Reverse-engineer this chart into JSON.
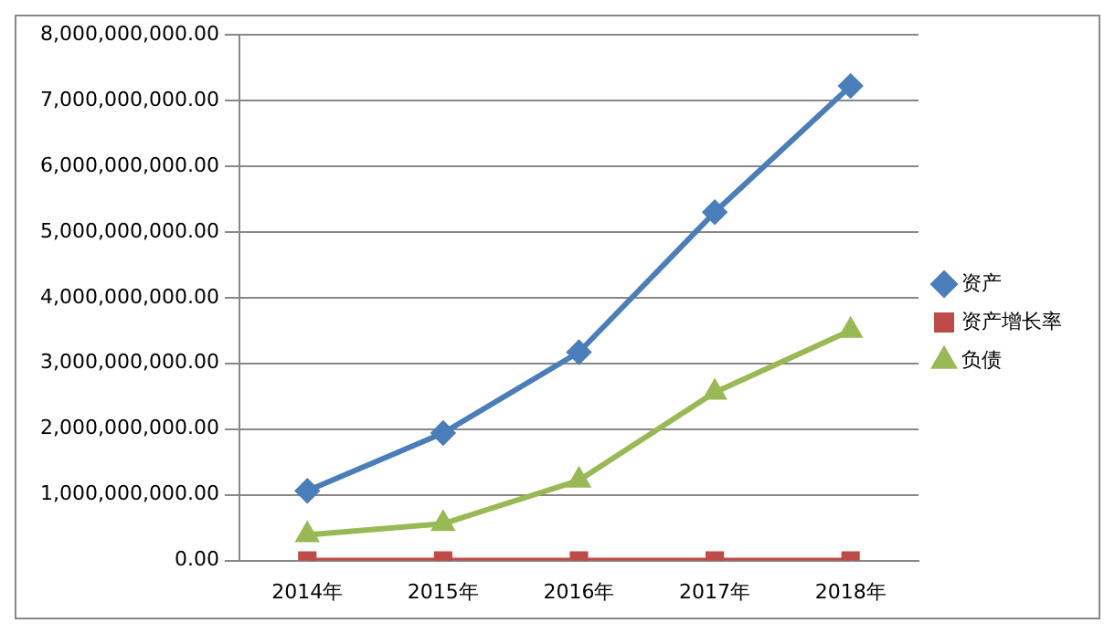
{
  "chart_data": {
    "type": "line",
    "categories": [
      "2014年",
      "2015年",
      "2016年",
      "2017年",
      "2018年"
    ],
    "series": [
      {
        "name": "资产",
        "color": "#4a7ebb",
        "marker": "diamond",
        "values": [
          1060000000,
          1940000000,
          3170000000,
          5300000000,
          7220000000
        ]
      },
      {
        "name": "资产增长率",
        "color": "#be4b48",
        "marker": "square",
        "values": [
          0,
          0,
          0,
          0,
          0
        ]
      },
      {
        "name": "负债",
        "color": "#98b954",
        "marker": "triangle",
        "values": [
          390000000,
          560000000,
          1220000000,
          2560000000,
          3500000000
        ]
      }
    ],
    "ylim": [
      0,
      8000000000
    ],
    "yticks": [
      {
        "value": 0,
        "label": "0.00"
      },
      {
        "value": 1000000000,
        "label": "1,000,000,000.00"
      },
      {
        "value": 2000000000,
        "label": "2,000,000,000.00"
      },
      {
        "value": 3000000000,
        "label": "3,000,000,000.00"
      },
      {
        "value": 4000000000,
        "label": "4,000,000,000.00"
      },
      {
        "value": 5000000000,
        "label": "5,000,000,000.00"
      },
      {
        "value": 6000000000,
        "label": "6,000,000,000.00"
      },
      {
        "value": 7000000000,
        "label": "7,000,000,000.00"
      },
      {
        "value": 8000000000,
        "label": "8,000,000,000.00"
      }
    ],
    "grid": "y",
    "legend": "right",
    "line_style": "solid"
  }
}
